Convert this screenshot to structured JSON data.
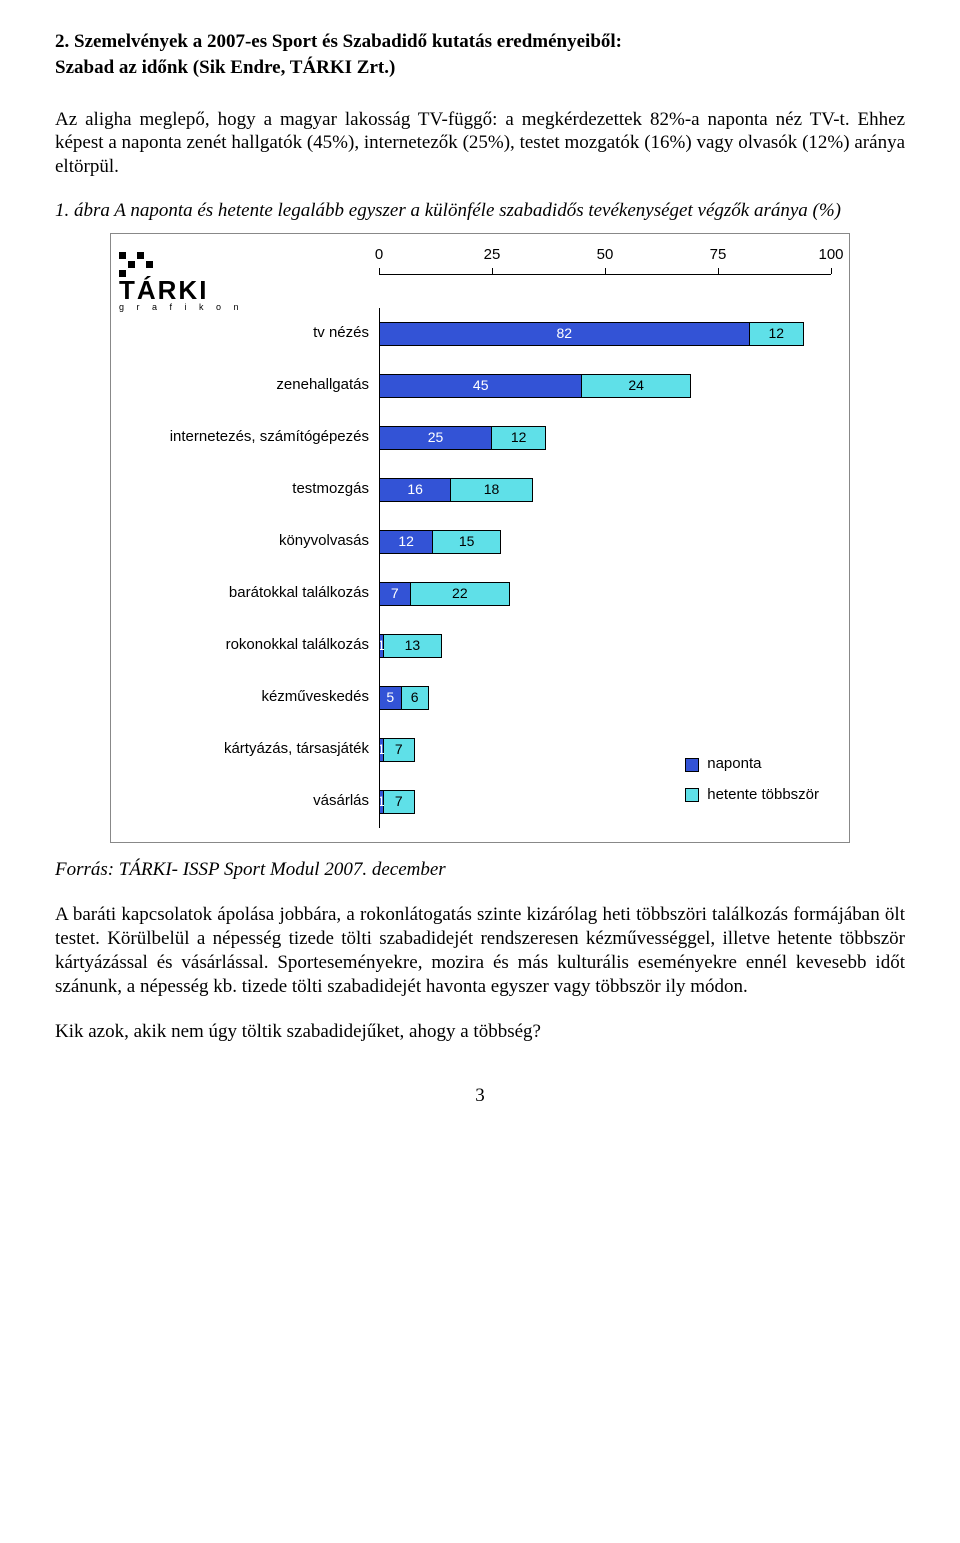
{
  "heading": "2. Szemelvények a 2007-es Sport és Szabadidő kutatás eredményeiből:",
  "subheading": "Szabad az időnk (Sik Endre, TÁRKI Zrt.)",
  "intro_para": "Az aligha meglepő, hogy a magyar lakosság TV-függő: a megkérdezettek 82%-a naponta néz TV-t. Ehhez képest a naponta zenét hallgatók (45%), internetezők (25%), testet mozgatók (16%) vagy olvasók (12%) aránya eltörpül.",
  "fig_caption": "1. ábra A naponta és hetente legalább egyszer a különféle szabadidős tevékenységet végzők aránya (%)",
  "chart": {
    "type": "stacked-bar-horizontal",
    "logo_main": "TÁRKI",
    "logo_sub": "g r a f i k o n",
    "x_ticks": [
      0,
      25,
      50,
      75,
      100
    ],
    "x_max": 100,
    "colors": {
      "seg1": "#3353d6",
      "seg2": "#5fe0e8"
    },
    "series_labels": {
      "seg1": "naponta",
      "seg2": "hetente többször"
    },
    "rows": [
      {
        "label": "tv nézés",
        "seg1": 82,
        "seg2": 12
      },
      {
        "label": "zenehallgatás",
        "seg1": 45,
        "seg2": 24
      },
      {
        "label": "internetezés, számítógépezés",
        "seg1": 25,
        "seg2": 12
      },
      {
        "label": "testmozgás",
        "seg1": 16,
        "seg2": 18
      },
      {
        "label": "könyvolvasás",
        "seg1": 12,
        "seg2": 15
      },
      {
        "label": "barátokkal találkozás",
        "seg1": 7,
        "seg2": 22
      },
      {
        "label": "rokonokkal találkozás",
        "seg1": 1,
        "seg2": 13
      },
      {
        "label": "kézműveskedés",
        "seg1": 5,
        "seg2": 6
      },
      {
        "label": "kártyázás, társasjáték",
        "seg1": 1,
        "seg2": 7
      },
      {
        "label": "vásárlás",
        "seg1": 1,
        "seg2": 7
      }
    ]
  },
  "source": "Forrás: TÁRKI- ISSP Sport Modul 2007. december",
  "para2": "A baráti kapcsolatok ápolása jobbára, a rokonlátogatás szinte kizárólag heti többszöri találkozás formájában ölt testet. Körülbelül a népesség tizede tölti szabadidejét rendszeresen kézművességgel, illetve hetente többször kártyázással és vásárlással. Sporteseményekre, mozira és más kulturális eseményekre ennél kevesebb időt szánunk, a népesség kb. tizede tölti szabadidejét havonta egyszer vagy többször ily módon.",
  "question": "Kik azok, akik nem úgy töltik szabadidejűket, ahogy a többség?",
  "pagenum": "3"
}
